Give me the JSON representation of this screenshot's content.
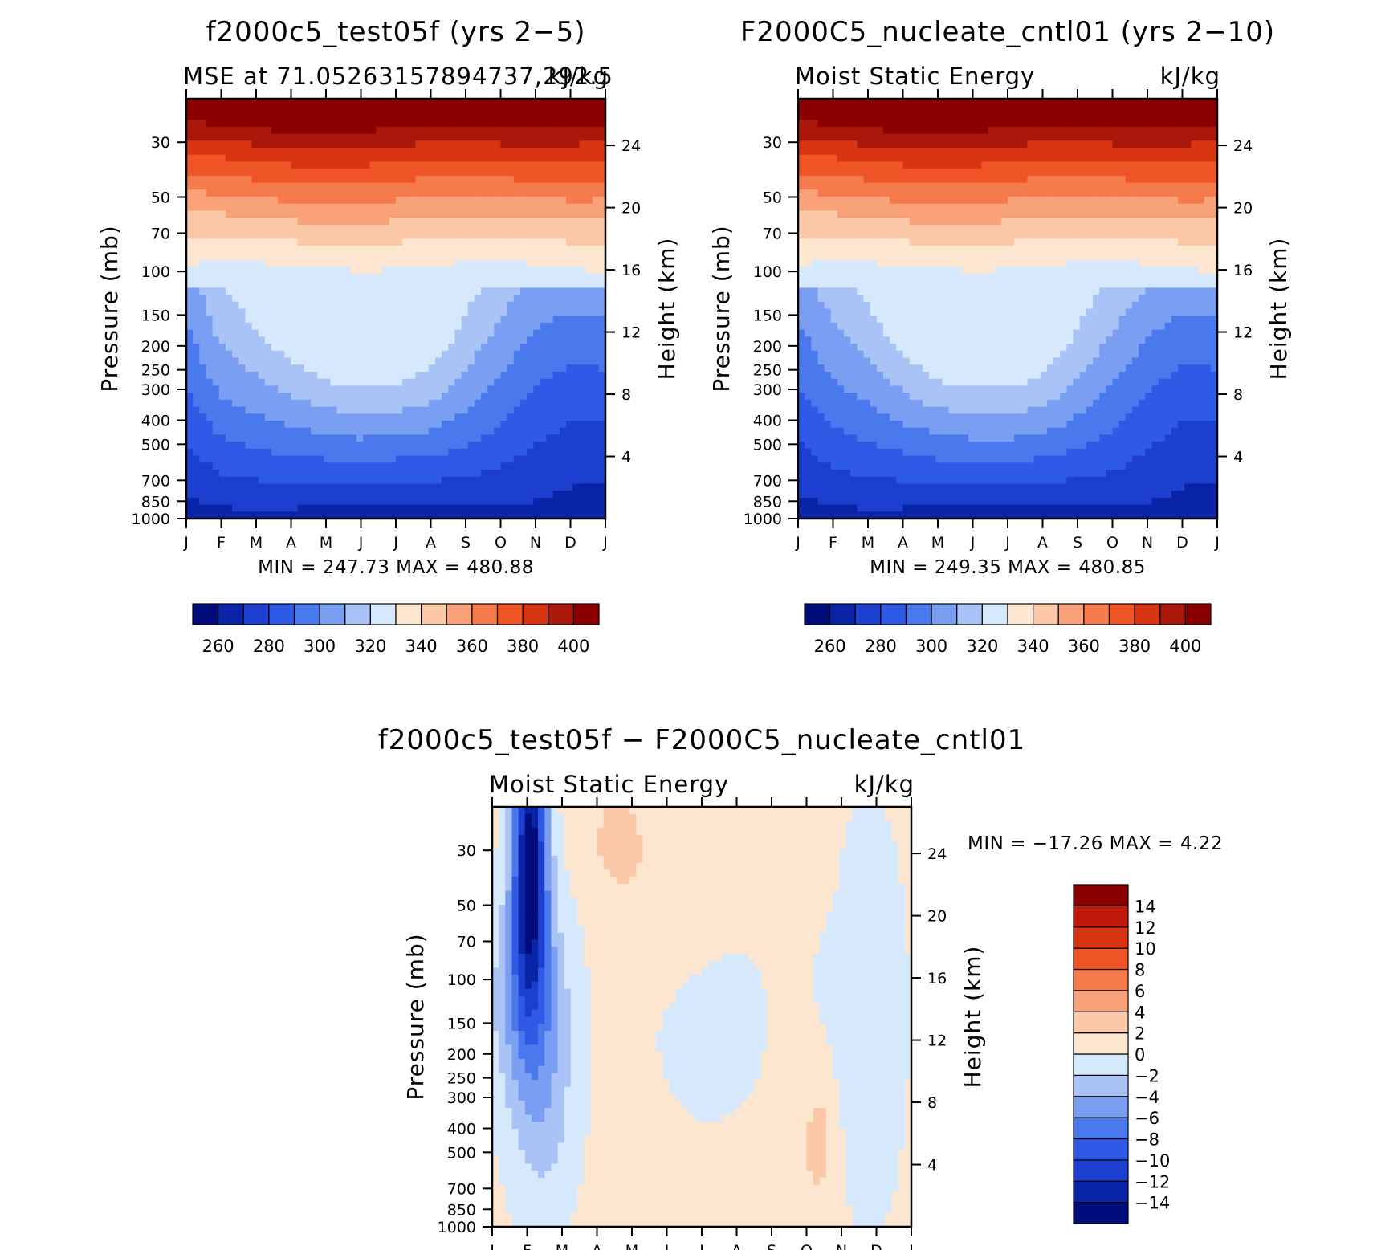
{
  "chart_data": [
    {
      "id": "panel-a",
      "type": "contour",
      "title": "f2000c5_test05f (yrs 2−5)",
      "left_subtitle": "MSE at 71.05263157894737,292.5",
      "right_subtitle": "kJ/kg",
      "ylabel": "Pressure (mb)",
      "right_ylabel": "Height (km)",
      "months": [
        "J",
        "F",
        "M",
        "A",
        "M",
        "J",
        "J",
        "A",
        "S",
        "O",
        "N",
        "D",
        "J"
      ],
      "pressure_ticks": [
        30,
        50,
        70,
        100,
        150,
        200,
        250,
        300,
        400,
        500,
        700,
        850,
        1000
      ],
      "pressure_labels": [
        "30",
        "50",
        "70",
        "100",
        "150",
        "200",
        "250",
        "300",
        "400",
        "500",
        "700",
        "850",
        "1000"
      ],
      "height_ticks": [
        4,
        8,
        12,
        16,
        20,
        24
      ],
      "height_labels": [
        "4",
        "8",
        "12",
        "16",
        "20",
        "24"
      ],
      "stats": "MIN =  247.73  MAX =  480.88",
      "contour_levels": [
        255,
        260,
        265,
        270,
        275,
        280,
        285,
        290,
        295,
        300,
        305,
        310,
        315,
        320,
        325,
        330,
        335,
        340,
        345,
        350,
        355,
        360,
        365,
        370,
        375,
        380,
        385,
        390,
        395,
        400,
        405,
        410
      ],
      "colorbar_labels": [
        "260",
        "280",
        "300",
        "320",
        "340",
        "360",
        "380",
        "400"
      ],
      "colorbar_label_levels": [
        260,
        280,
        300,
        320,
        340,
        360,
        380,
        400
      ],
      "field_model": {
        "type": "mse",
        "height_scale": [
          0.0,
          0.4,
          0.6,
          0.8,
          0.95,
          1.0,
          0.9,
          0.75,
          0.5,
          0.3,
          0.1,
          0.0,
          0.0
        ],
        "trop_height": [
          0.0,
          0.05,
          0.3,
          0.55,
          0.85,
          1.0,
          0.95,
          0.75,
          0.5,
          0.35,
          0.3,
          0.15,
          0.0
        ]
      }
    },
    {
      "id": "panel-b",
      "type": "contour",
      "title": "F2000C5_nucleate_cntl01 (yrs 2−10)",
      "left_subtitle": "Moist Static Energy",
      "right_subtitle": "kJ/kg",
      "ylabel": "Pressure (mb)",
      "right_ylabel": "Height (km)",
      "months": [
        "J",
        "F",
        "M",
        "A",
        "M",
        "J",
        "J",
        "A",
        "S",
        "O",
        "N",
        "D",
        "J"
      ],
      "pressure_ticks": [
        30,
        50,
        70,
        100,
        150,
        200,
        250,
        300,
        400,
        500,
        700,
        850,
        1000
      ],
      "pressure_labels": [
        "30",
        "50",
        "70",
        "100",
        "150",
        "200",
        "250",
        "300",
        "400",
        "500",
        "700",
        "850",
        "1000"
      ],
      "height_ticks": [
        4,
        8,
        12,
        16,
        20,
        24
      ],
      "height_labels": [
        "4",
        "8",
        "12",
        "16",
        "20",
        "24"
      ],
      "stats": "MIN =  249.35  MAX =  480.85",
      "contour_levels": [
        255,
        260,
        265,
        270,
        275,
        280,
        285,
        290,
        295,
        300,
        305,
        310,
        315,
        320,
        325,
        330,
        335,
        340,
        345,
        350,
        355,
        360,
        365,
        370,
        375,
        380,
        385,
        390,
        395,
        400,
        405,
        410
      ],
      "colorbar_labels": [
        "260",
        "280",
        "300",
        "320",
        "340",
        "360",
        "380",
        "400"
      ],
      "colorbar_label_levels": [
        260,
        280,
        300,
        320,
        340,
        360,
        380,
        400
      ],
      "field_model": {
        "type": "mse",
        "height_scale": [
          0.0,
          0.3,
          0.5,
          0.75,
          0.95,
          1.0,
          0.95,
          0.8,
          0.55,
          0.35,
          0.15,
          0.0,
          0.0
        ],
        "trop_height": [
          0.0,
          0.1,
          0.3,
          0.55,
          0.85,
          1.0,
          0.95,
          0.75,
          0.5,
          0.35,
          0.3,
          0.15,
          0.0
        ]
      }
    },
    {
      "id": "panel-diff",
      "type": "contour",
      "title": "f2000c5_test05f − F2000C5_nucleate_cntl01",
      "left_subtitle": "Moist Static Energy",
      "right_subtitle": "kJ/kg",
      "ylabel": "Pressure (mb)",
      "right_ylabel": "Height (km)",
      "months": [
        "J",
        "F",
        "M",
        "A",
        "M",
        "J",
        "J",
        "A",
        "S",
        "O",
        "N",
        "D",
        "J"
      ],
      "pressure_ticks": [
        30,
        50,
        70,
        100,
        150,
        200,
        250,
        300,
        400,
        500,
        700,
        850,
        1000
      ],
      "pressure_labels": [
        "30",
        "50",
        "70",
        "100",
        "150",
        "200",
        "250",
        "300",
        "400",
        "500",
        "700",
        "850",
        "1000"
      ],
      "height_ticks": [
        4,
        8,
        12,
        16,
        20,
        24
      ],
      "height_labels": [
        "4",
        "8",
        "12",
        "16",
        "20",
        "24"
      ],
      "stats": "MIN = −17.26  MAX =    4.22",
      "contour_levels": [
        -14,
        -12,
        -10,
        -8,
        -6,
        -4,
        -2,
        0,
        2,
        4,
        6,
        8,
        10,
        12,
        14
      ],
      "colorbar_labels": [
        "−14",
        "−12",
        "−10",
        "−8",
        "−6",
        "−4",
        "−2",
        "0",
        "2",
        "4",
        "6",
        "8",
        "10",
        "12",
        "14"
      ],
      "colorbar_label_levels": [
        -14,
        -12,
        -10,
        -8,
        -6,
        -4,
        -2,
        0,
        2,
        4,
        6,
        8,
        10,
        12,
        14
      ],
      "field_model": {
        "type": "diff"
      }
    }
  ]
}
